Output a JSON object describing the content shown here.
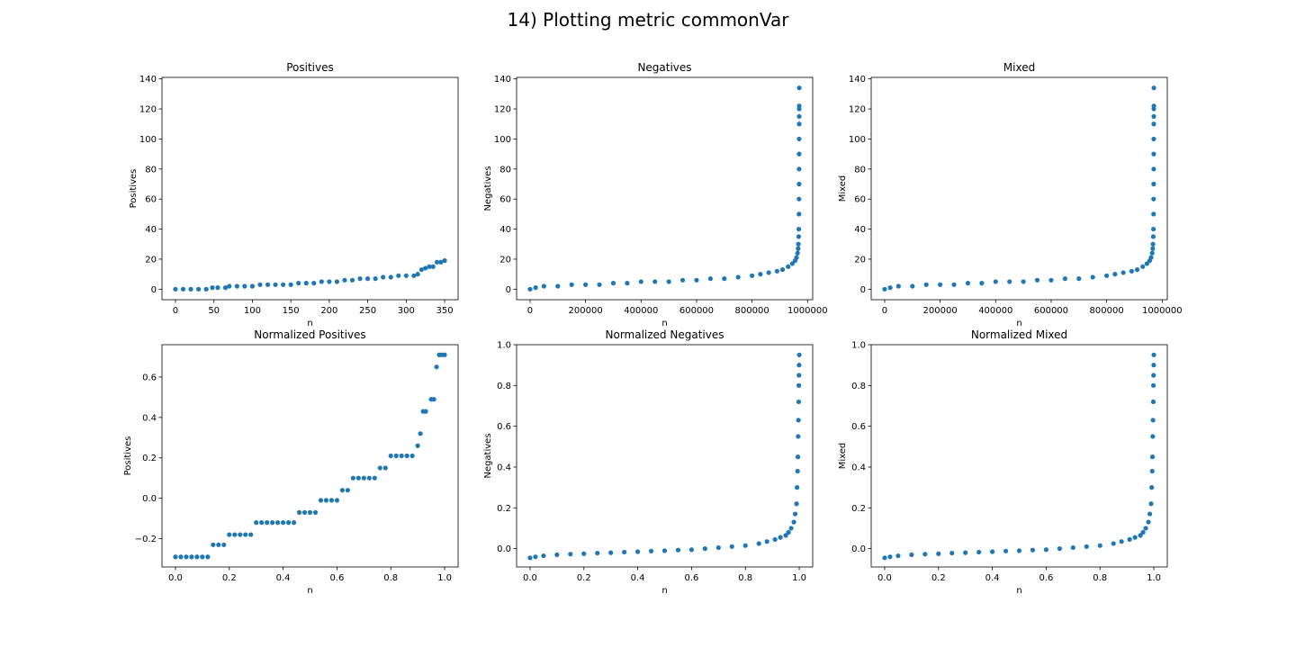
{
  "figure": {
    "suptitle": "14) Plotting metric commonVar"
  },
  "colors": {
    "marker": "#1f77b4",
    "axes": "#000000",
    "background": "#ffffff"
  },
  "chart_data": [
    {
      "type": "scatter",
      "title": "Positives",
      "xlabel": "n",
      "ylabel": "Positives",
      "xlim": [
        -17.5,
        367.5
      ],
      "ylim": [
        -7,
        141
      ],
      "xticks": [
        0,
        50,
        100,
        150,
        200,
        250,
        300,
        350
      ],
      "xtick_labels": [
        "0",
        "50",
        "100",
        "150",
        "200",
        "250",
        "300",
        "350"
      ],
      "yticks": [
        0,
        20,
        40,
        60,
        80,
        100,
        120,
        140
      ],
      "ytick_labels": [
        "0",
        "20",
        "40",
        "60",
        "80",
        "100",
        "120",
        "140"
      ],
      "grid": false,
      "series": [
        {
          "x": [
            0,
            10,
            20,
            30,
            40,
            48,
            55,
            65,
            70,
            80,
            90,
            100,
            110,
            120,
            130,
            140,
            150,
            160,
            170,
            180,
            190,
            200,
            210,
            220,
            230,
            240,
            250,
            260,
            270,
            280,
            290,
            300,
            310,
            315,
            320,
            325,
            330,
            335,
            340,
            345,
            350
          ],
          "y": [
            0,
            0,
            0,
            0,
            0,
            1,
            1,
            1,
            2,
            2,
            2,
            2,
            3,
            3,
            3,
            3,
            3,
            4,
            4,
            4,
            5,
            5,
            5,
            6,
            6,
            7,
            7,
            7,
            8,
            8,
            9,
            9,
            9,
            10,
            13,
            14,
            15,
            15,
            18,
            18,
            19
          ]
        }
      ]
    },
    {
      "type": "scatter",
      "title": "Negatives",
      "xlabel": "n",
      "ylabel": "Negatives",
      "xlim": [
        -48500,
        1018500
      ],
      "ylim": [
        -7,
        141
      ],
      "xticks": [
        0,
        200000,
        400000,
        600000,
        800000,
        1000000
      ],
      "xtick_labels": [
        "0",
        "200000",
        "400000",
        "600000",
        "800000",
        "1000000"
      ],
      "yticks": [
        0,
        20,
        40,
        60,
        80,
        100,
        120,
        140
      ],
      "ytick_labels": [
        "0",
        "20",
        "40",
        "60",
        "80",
        "100",
        "120",
        "140"
      ],
      "grid": false,
      "series": [
        {
          "x": [
            0,
            20000,
            50000,
            100000,
            150000,
            200000,
            250000,
            300000,
            350000,
            400000,
            450000,
            500000,
            550000,
            600000,
            650000,
            700000,
            750000,
            800000,
            830000,
            860000,
            890000,
            910000,
            930000,
            945000,
            955000,
            960000,
            964000,
            966000,
            967000,
            968000,
            968500,
            969000,
            969200,
            969400,
            969500,
            969600,
            969700,
            969800,
            969850,
            969900,
            969950,
            970000
          ],
          "y": [
            0,
            1,
            2,
            2,
            3,
            3,
            3,
            4,
            4,
            5,
            5,
            5,
            6,
            6,
            7,
            7,
            8,
            9,
            10,
            11,
            12,
            13,
            15,
            17,
            19,
            21,
            24,
            27,
            30,
            35,
            40,
            50,
            60,
            70,
            80,
            90,
            100,
            110,
            115,
            120,
            122,
            134
          ]
        }
      ]
    },
    {
      "type": "scatter",
      "title": "Mixed",
      "xlabel": "n",
      "ylabel": "Mixed",
      "xlim": [
        -48500,
        1018500
      ],
      "ylim": [
        -7,
        141
      ],
      "xticks": [
        0,
        200000,
        400000,
        600000,
        800000,
        1000000
      ],
      "xtick_labels": [
        "0",
        "200000",
        "400000",
        "600000",
        "800000",
        "1000000"
      ],
      "yticks": [
        0,
        20,
        40,
        60,
        80,
        100,
        120,
        140
      ],
      "ytick_labels": [
        "0",
        "20",
        "40",
        "60",
        "80",
        "100",
        "120",
        "140"
      ],
      "grid": false,
      "series": [
        {
          "x": [
            0,
            20000,
            50000,
            100000,
            150000,
            200000,
            250000,
            300000,
            350000,
            400000,
            450000,
            500000,
            550000,
            600000,
            650000,
            700000,
            750000,
            800000,
            830000,
            860000,
            890000,
            910000,
            930000,
            945000,
            955000,
            960000,
            964000,
            966000,
            967000,
            968000,
            968500,
            969000,
            969200,
            969400,
            969500,
            969600,
            969700,
            969800,
            969850,
            969900,
            969950,
            970000
          ],
          "y": [
            0,
            1,
            2,
            2,
            3,
            3,
            3,
            4,
            4,
            5,
            5,
            5,
            6,
            6,
            7,
            7,
            8,
            9,
            10,
            11,
            12,
            13,
            15,
            17,
            19,
            21,
            24,
            27,
            30,
            35,
            40,
            50,
            60,
            70,
            80,
            90,
            100,
            110,
            115,
            120,
            122,
            134
          ]
        }
      ]
    },
    {
      "type": "scatter",
      "title": "Normalized Positives",
      "xlabel": "n",
      "ylabel": "Positives",
      "xlim": [
        -0.05,
        1.05
      ],
      "ylim": [
        -0.34,
        0.76
      ],
      "xticks": [
        0.0,
        0.2,
        0.4,
        0.6,
        0.8,
        1.0
      ],
      "xtick_labels": [
        "0.0",
        "0.2",
        "0.4",
        "0.6",
        "0.8",
        "1.0"
      ],
      "yticks": [
        -0.2,
        0.0,
        0.2,
        0.4,
        0.6
      ],
      "ytick_labels": [
        "−0.2",
        "0.0",
        "0.2",
        "0.4",
        "0.6"
      ],
      "grid": false,
      "series": [
        {
          "x": [
            0.0,
            0.02,
            0.04,
            0.06,
            0.08,
            0.1,
            0.12,
            0.14,
            0.16,
            0.18,
            0.2,
            0.22,
            0.24,
            0.26,
            0.28,
            0.3,
            0.32,
            0.34,
            0.36,
            0.38,
            0.4,
            0.42,
            0.44,
            0.46,
            0.48,
            0.5,
            0.52,
            0.54,
            0.56,
            0.58,
            0.6,
            0.62,
            0.64,
            0.66,
            0.68,
            0.7,
            0.72,
            0.74,
            0.76,
            0.78,
            0.8,
            0.82,
            0.84,
            0.86,
            0.88,
            0.9,
            0.91,
            0.92,
            0.93,
            0.95,
            0.96,
            0.97,
            0.98,
            0.99,
            1.0
          ],
          "y": [
            -0.29,
            -0.29,
            -0.29,
            -0.29,
            -0.29,
            -0.29,
            -0.29,
            -0.23,
            -0.23,
            -0.23,
            -0.18,
            -0.18,
            -0.18,
            -0.18,
            -0.18,
            -0.12,
            -0.12,
            -0.12,
            -0.12,
            -0.12,
            -0.12,
            -0.12,
            -0.12,
            -0.07,
            -0.07,
            -0.07,
            -0.07,
            -0.01,
            -0.01,
            -0.01,
            -0.01,
            0.04,
            0.04,
            0.1,
            0.1,
            0.1,
            0.1,
            0.1,
            0.15,
            0.15,
            0.21,
            0.21,
            0.21,
            0.21,
            0.21,
            0.26,
            0.32,
            0.43,
            0.43,
            0.49,
            0.49,
            0.65,
            0.71,
            0.71,
            0.71
          ]
        }
      ]
    },
    {
      "type": "scatter",
      "title": "Normalized Negatives",
      "xlabel": "n",
      "ylabel": "Negatives",
      "xlim": [
        -0.05,
        1.05
      ],
      "ylim": [
        -0.09,
        1.0
      ],
      "xticks": [
        0.0,
        0.2,
        0.4,
        0.6,
        0.8,
        1.0
      ],
      "xtick_labels": [
        "0.0",
        "0.2",
        "0.4",
        "0.6",
        "0.8",
        "1.0"
      ],
      "yticks": [
        0.0,
        0.2,
        0.4,
        0.6,
        0.8,
        1.0
      ],
      "ytick_labels": [
        "0.0",
        "0.2",
        "0.4",
        "0.6",
        "0.8",
        "1.0"
      ],
      "grid": false,
      "series": [
        {
          "x": [
            0.0,
            0.02,
            0.05,
            0.1,
            0.15,
            0.2,
            0.25,
            0.3,
            0.35,
            0.4,
            0.45,
            0.5,
            0.55,
            0.6,
            0.65,
            0.7,
            0.75,
            0.8,
            0.85,
            0.88,
            0.91,
            0.93,
            0.95,
            0.96,
            0.97,
            0.98,
            0.985,
            0.99,
            0.992,
            0.994,
            0.995,
            0.996,
            0.997,
            0.998,
            0.9985,
            0.999,
            0.9995,
            1.0
          ],
          "y": [
            -0.045,
            -0.04,
            -0.035,
            -0.03,
            -0.027,
            -0.025,
            -0.022,
            -0.02,
            -0.017,
            -0.015,
            -0.012,
            -0.01,
            -0.007,
            -0.005,
            0.0,
            0.005,
            0.01,
            0.015,
            0.025,
            0.035,
            0.045,
            0.055,
            0.065,
            0.08,
            0.1,
            0.13,
            0.17,
            0.22,
            0.3,
            0.38,
            0.45,
            0.55,
            0.63,
            0.72,
            0.8,
            0.85,
            0.9,
            0.95
          ]
        }
      ]
    },
    {
      "type": "scatter",
      "title": "Normalized Mixed",
      "xlabel": "n",
      "ylabel": "Mixed",
      "xlim": [
        -0.05,
        1.05
      ],
      "ylim": [
        -0.09,
        1.0
      ],
      "xticks": [
        0.0,
        0.2,
        0.4,
        0.6,
        0.8,
        1.0
      ],
      "xtick_labels": [
        "0.0",
        "0.2",
        "0.4",
        "0.6",
        "0.8",
        "1.0"
      ],
      "yticks": [
        0.0,
        0.2,
        0.4,
        0.6,
        0.8,
        1.0
      ],
      "ytick_labels": [
        "0.0",
        "0.2",
        "0.4",
        "0.6",
        "0.8",
        "1.0"
      ],
      "grid": false,
      "series": [
        {
          "x": [
            0.0,
            0.02,
            0.05,
            0.1,
            0.15,
            0.2,
            0.25,
            0.3,
            0.35,
            0.4,
            0.45,
            0.5,
            0.55,
            0.6,
            0.65,
            0.7,
            0.75,
            0.8,
            0.85,
            0.88,
            0.91,
            0.93,
            0.95,
            0.96,
            0.97,
            0.98,
            0.985,
            0.99,
            0.992,
            0.994,
            0.995,
            0.996,
            0.997,
            0.998,
            0.9985,
            0.999,
            0.9995,
            1.0
          ],
          "y": [
            -0.045,
            -0.04,
            -0.035,
            -0.03,
            -0.027,
            -0.025,
            -0.022,
            -0.02,
            -0.017,
            -0.015,
            -0.012,
            -0.01,
            -0.007,
            -0.005,
            0.0,
            0.005,
            0.01,
            0.015,
            0.025,
            0.035,
            0.045,
            0.055,
            0.065,
            0.08,
            0.1,
            0.13,
            0.17,
            0.22,
            0.3,
            0.38,
            0.45,
            0.55,
            0.63,
            0.72,
            0.8,
            0.85,
            0.9,
            0.95
          ]
        }
      ]
    }
  ]
}
